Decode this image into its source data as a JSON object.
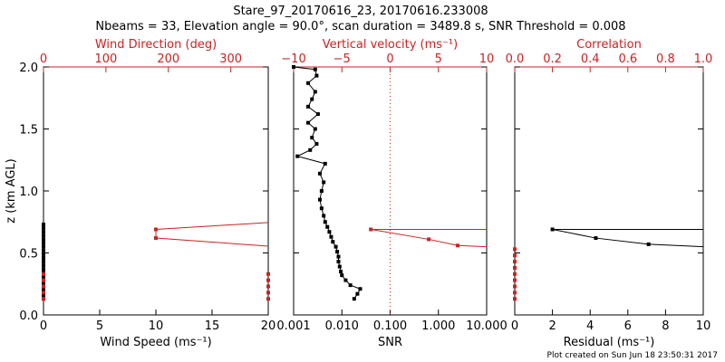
{
  "header": {
    "title_line1": "Stare_97_20170616_23, 20170616.233008",
    "title_line2": "Nbeams = 33, Elevation angle = 90.0°, scan duration = 3489.8 s, SNR Threshold = 0.008"
  },
  "footer": {
    "created": "Plot created on Sun Jun 18 23:50:31 2017"
  },
  "colors": {
    "black": "#000000",
    "red": "#cc2222"
  },
  "chart_data": [
    {
      "type": "line",
      "ylabel": "z (km AGL)",
      "ylim": [
        0.0,
        2.0
      ],
      "yticks": [
        "0.0",
        "0.5",
        "1.0",
        "1.5",
        "2.0"
      ],
      "xlabel": "Wind Speed (ms⁻¹)",
      "xlim": [
        0,
        20
      ],
      "xticks": [
        "0",
        "5",
        "10",
        "15",
        "20"
      ],
      "x2label": "Wind Direction (deg)",
      "x2lim": [
        0,
        360
      ],
      "x2ticks": [
        "0",
        "100",
        "200",
        "300"
      ],
      "series": [
        {
          "color": "black",
          "axis": "bottom",
          "points": [
            [
              0,
              0.13
            ],
            [
              0,
              0.16
            ],
            [
              0,
              0.19
            ],
            [
              0,
              0.22
            ],
            [
              0,
              0.25
            ],
            [
              0,
              0.28
            ],
            [
              0,
              0.31
            ],
            [
              0,
              0.34
            ],
            [
              0,
              0.37
            ],
            [
              0,
              0.4
            ],
            [
              0,
              0.43
            ],
            [
              0,
              0.46
            ],
            [
              0,
              0.49
            ],
            [
              0,
              0.52
            ],
            [
              0,
              0.55
            ],
            [
              0,
              0.58
            ],
            [
              0,
              0.61
            ],
            [
              0,
              0.64
            ],
            [
              0,
              0.67
            ],
            [
              0,
              0.7
            ],
            [
              0,
              0.73
            ]
          ]
        },
        {
          "color": "red",
          "axis": "top",
          "points": [
            [
              180,
              0.69
            ],
            [
              180,
              0.62
            ]
          ],
          "to_edge": [
            0.745,
            0.555
          ]
        },
        {
          "color": "red",
          "axis": "top",
          "markers_only": true,
          "points": [
            [
              360,
              0.13
            ],
            [
              360,
              0.18
            ],
            [
              360,
              0.23
            ],
            [
              360,
              0.28
            ],
            [
              360,
              0.33
            ],
            [
              0,
              0.13
            ],
            [
              0,
              0.18
            ],
            [
              0,
              0.23
            ],
            [
              0,
              0.28
            ],
            [
              0,
              0.33
            ]
          ]
        }
      ]
    },
    {
      "type": "line",
      "xlabel": "SNR",
      "xscale": "log",
      "xlim": [
        0.001,
        10
      ],
      "xticks": [
        "0.001",
        "0.010",
        "0.100",
        "1.000",
        "10.000"
      ],
      "x2label": "Vertical velocity (ms⁻¹)",
      "x2lim": [
        -10,
        10
      ],
      "x2ticks": [
        "−10",
        "−5",
        "0",
        "5",
        "10"
      ],
      "reference_line_x2": 0,
      "series": [
        {
          "color": "black",
          "axis": "bottom",
          "points": [
            [
              0.018,
              0.13
            ],
            [
              0.021,
              0.17
            ],
            [
              0.024,
              0.21
            ],
            [
              0.015,
              0.24
            ],
            [
              0.012,
              0.28
            ],
            [
              0.01,
              0.32
            ],
            [
              0.0095,
              0.35
            ],
            [
              0.009,
              0.39
            ],
            [
              0.0085,
              0.43
            ],
            [
              0.0085,
              0.47
            ],
            [
              0.008,
              0.51
            ],
            [
              0.0075,
              0.55
            ],
            [
              0.0065,
              0.59
            ],
            [
              0.006,
              0.63
            ],
            [
              0.0055,
              0.67
            ],
            [
              0.005,
              0.71
            ],
            [
              0.0045,
              0.75
            ],
            [
              0.0042,
              0.8
            ],
            [
              0.0038,
              0.86
            ],
            [
              0.0035,
              0.93
            ],
            [
              0.0038,
              1.0
            ],
            [
              0.0042,
              1.07
            ],
            [
              0.0035,
              1.14
            ],
            [
              0.0045,
              1.22
            ],
            [
              0.0012,
              1.28
            ],
            [
              0.0022,
              1.33
            ],
            [
              0.003,
              1.38
            ],
            [
              0.0024,
              1.43
            ],
            [
              0.0028,
              1.5
            ],
            [
              0.002,
              1.55
            ],
            [
              0.0032,
              1.62
            ],
            [
              0.002,
              1.68
            ],
            [
              0.0024,
              1.74
            ],
            [
              0.0028,
              1.8
            ],
            [
              0.002,
              1.87
            ],
            [
              0.003,
              1.93
            ],
            [
              0.0028,
              1.98
            ],
            [
              0.001,
              2.0
            ]
          ]
        },
        {
          "color": "red",
          "axis": "top",
          "points": [
            [
              -2,
              0.69
            ],
            [
              4,
              0.61
            ],
            [
              7,
              0.56
            ]
          ],
          "to_edge": [
            0.69,
            0.55
          ]
        }
      ]
    },
    {
      "type": "line",
      "xlabel": "Residual (ms⁻¹)",
      "xlim": [
        0,
        10
      ],
      "xticks": [
        "0",
        "2",
        "4",
        "6",
        "8",
        "10"
      ],
      "x2label": "Correlation",
      "x2lim": [
        0.0,
        1.0
      ],
      "x2ticks": [
        "0.0",
        "0.2",
        "0.4",
        "0.6",
        "0.8",
        "1.0"
      ],
      "series": [
        {
          "color": "black",
          "axis": "bottom",
          "points": [
            [
              2.0,
              0.69
            ],
            [
              4.3,
              0.62
            ],
            [
              7.1,
              0.57
            ]
          ],
          "to_edge": [
            0.69,
            0.55
          ]
        },
        {
          "color": "red",
          "axis": "top",
          "markers_only": true,
          "points": [
            [
              0,
              0.13
            ],
            [
              0,
              0.18
            ],
            [
              0,
              0.23
            ],
            [
              0,
              0.28
            ],
            [
              0,
              0.33
            ],
            [
              0,
              0.38
            ],
            [
              0,
              0.43
            ],
            [
              0,
              0.48
            ],
            [
              0,
              0.53
            ]
          ]
        }
      ]
    }
  ]
}
